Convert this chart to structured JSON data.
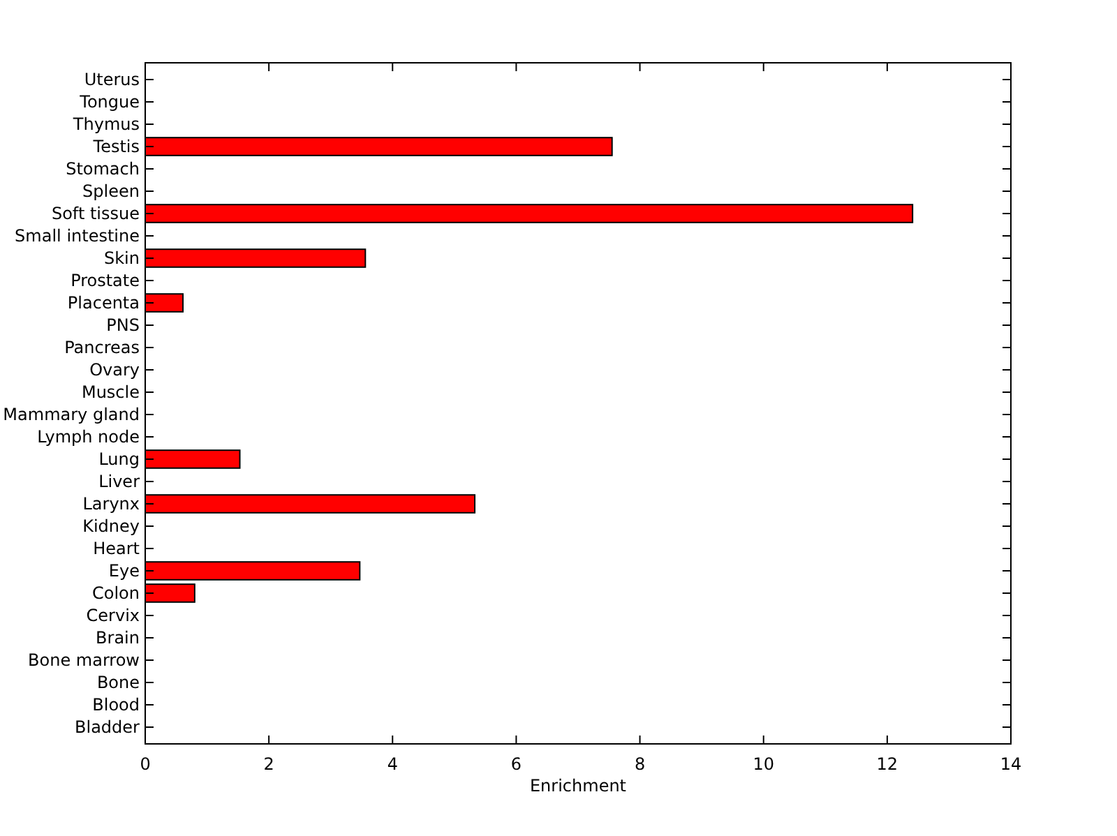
{
  "chart_data": {
    "type": "bar",
    "orientation": "horizontal",
    "xlabel": "Enrichment",
    "categories": [
      "Uterus",
      "Tongue",
      "Thymus",
      "Testis",
      "Stomach",
      "Spleen",
      "Soft tissue",
      "Small intestine",
      "Skin",
      "Prostate",
      "Placenta",
      "PNS",
      "Pancreas",
      "Ovary",
      "Muscle",
      "Mammary gland",
      "Lymph node",
      "Lung",
      "Liver",
      "Larynx",
      "Kidney",
      "Heart",
      "Eye",
      "Colon",
      "Cervix",
      "Brain",
      "Bone marrow",
      "Bone",
      "Blood",
      "Bladder"
    ],
    "values": [
      0,
      0,
      0,
      7.55,
      0,
      0,
      12.41,
      0,
      3.56,
      0,
      0.61,
      0,
      0,
      0,
      0,
      0,
      0,
      1.53,
      0,
      5.33,
      0,
      0,
      3.47,
      0.8,
      0,
      0,
      0,
      0,
      0,
      0
    ],
    "color": "#ff0000",
    "xlim": [
      0,
      14
    ],
    "xticks": [
      0,
      2,
      4,
      6,
      8,
      10,
      12,
      14
    ],
    "grid": false
  }
}
